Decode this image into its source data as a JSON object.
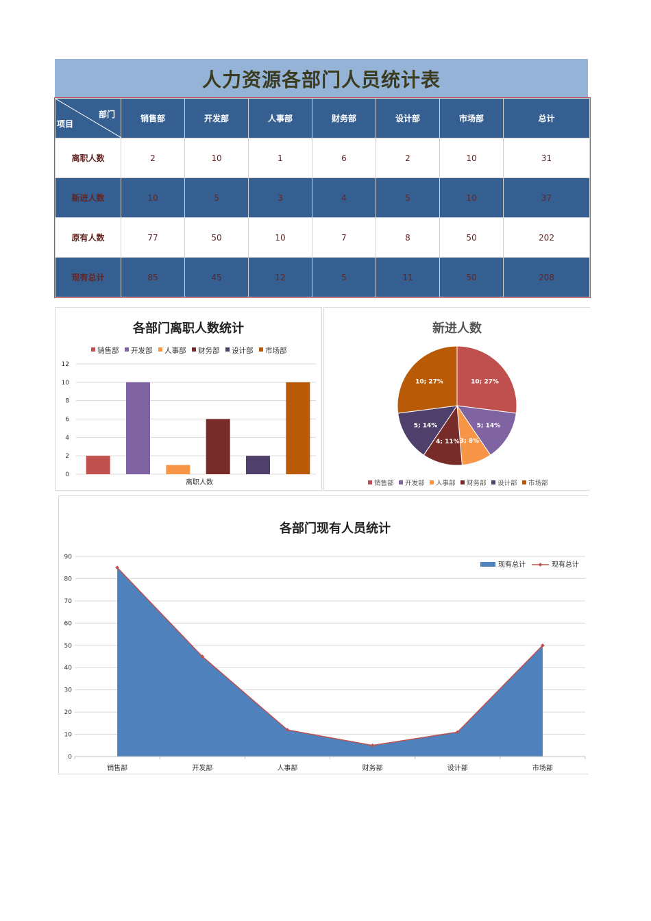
{
  "title": "人力资源各部门人员统计表",
  "table": {
    "corner_top": "部门",
    "corner_bottom": "项目",
    "columns": [
      "销售部",
      "开发部",
      "人事部",
      "财务部",
      "设计部",
      "市场部",
      "总计"
    ],
    "rows": [
      {
        "label": "离职人数",
        "values": [
          "2",
          "10",
          "1",
          "6",
          "2",
          "10",
          "31"
        ]
      },
      {
        "label": "新进人数",
        "values": [
          "10",
          "5",
          "3",
          "4",
          "5",
          "10",
          "37"
        ]
      },
      {
        "label": "原有人数",
        "values": [
          "77",
          "50",
          "10",
          "7",
          "8",
          "50",
          "202"
        ]
      },
      {
        "label": "现有总计",
        "values": [
          "85",
          "45",
          "12",
          "5",
          "11",
          "50",
          "208"
        ]
      }
    ]
  },
  "colors": [
    "#c0504d",
    "#8064a2",
    "#f79646",
    "#772c2a",
    "#4f3f6b",
    "#b85a06"
  ],
  "chart_data": [
    {
      "type": "bar",
      "title": "各部门离职人数统计",
      "categories": [
        "离职人数"
      ],
      "series": [
        {
          "name": "销售部",
          "values": [
            2
          ]
        },
        {
          "name": "开发部",
          "values": [
            10
          ]
        },
        {
          "name": "人事部",
          "values": [
            1
          ]
        },
        {
          "name": "财务部",
          "values": [
            6
          ]
        },
        {
          "name": "设计部",
          "values": [
            2
          ]
        },
        {
          "name": "市场部",
          "values": [
            10
          ]
        }
      ],
      "xlabel": "离职人数",
      "ylim": [
        0,
        12
      ],
      "yticks": [
        0,
        2,
        4,
        6,
        8,
        10,
        12
      ],
      "legend": "top"
    },
    {
      "type": "pie",
      "title": "新进人数",
      "labels": [
        "销售部",
        "开发部",
        "人事部",
        "财务部",
        "设计部",
        "市场部"
      ],
      "values": [
        10,
        5,
        3,
        4,
        5,
        10
      ],
      "data_labels": [
        "10; 27%",
        "5; 14%",
        "3; 8%",
        "4; 11%",
        "5; 14%",
        "10; 27%"
      ],
      "legend": "bottom"
    },
    {
      "type": "area",
      "title": "各部门现有人员统计",
      "categories": [
        "销售部",
        "开发部",
        "人事部",
        "财务部",
        "设计部",
        "市场部"
      ],
      "series": [
        {
          "name": "现有总计",
          "kind": "area",
          "values": [
            85,
            45,
            12,
            5,
            11,
            50
          ]
        },
        {
          "name": "现有总计",
          "kind": "line",
          "values": [
            85,
            45,
            12,
            5,
            11,
            50
          ]
        }
      ],
      "ylim": [
        0,
        90
      ],
      "yticks": [
        0,
        10,
        20,
        30,
        40,
        50,
        60,
        70,
        80,
        90
      ],
      "legend": "top-right"
    }
  ]
}
